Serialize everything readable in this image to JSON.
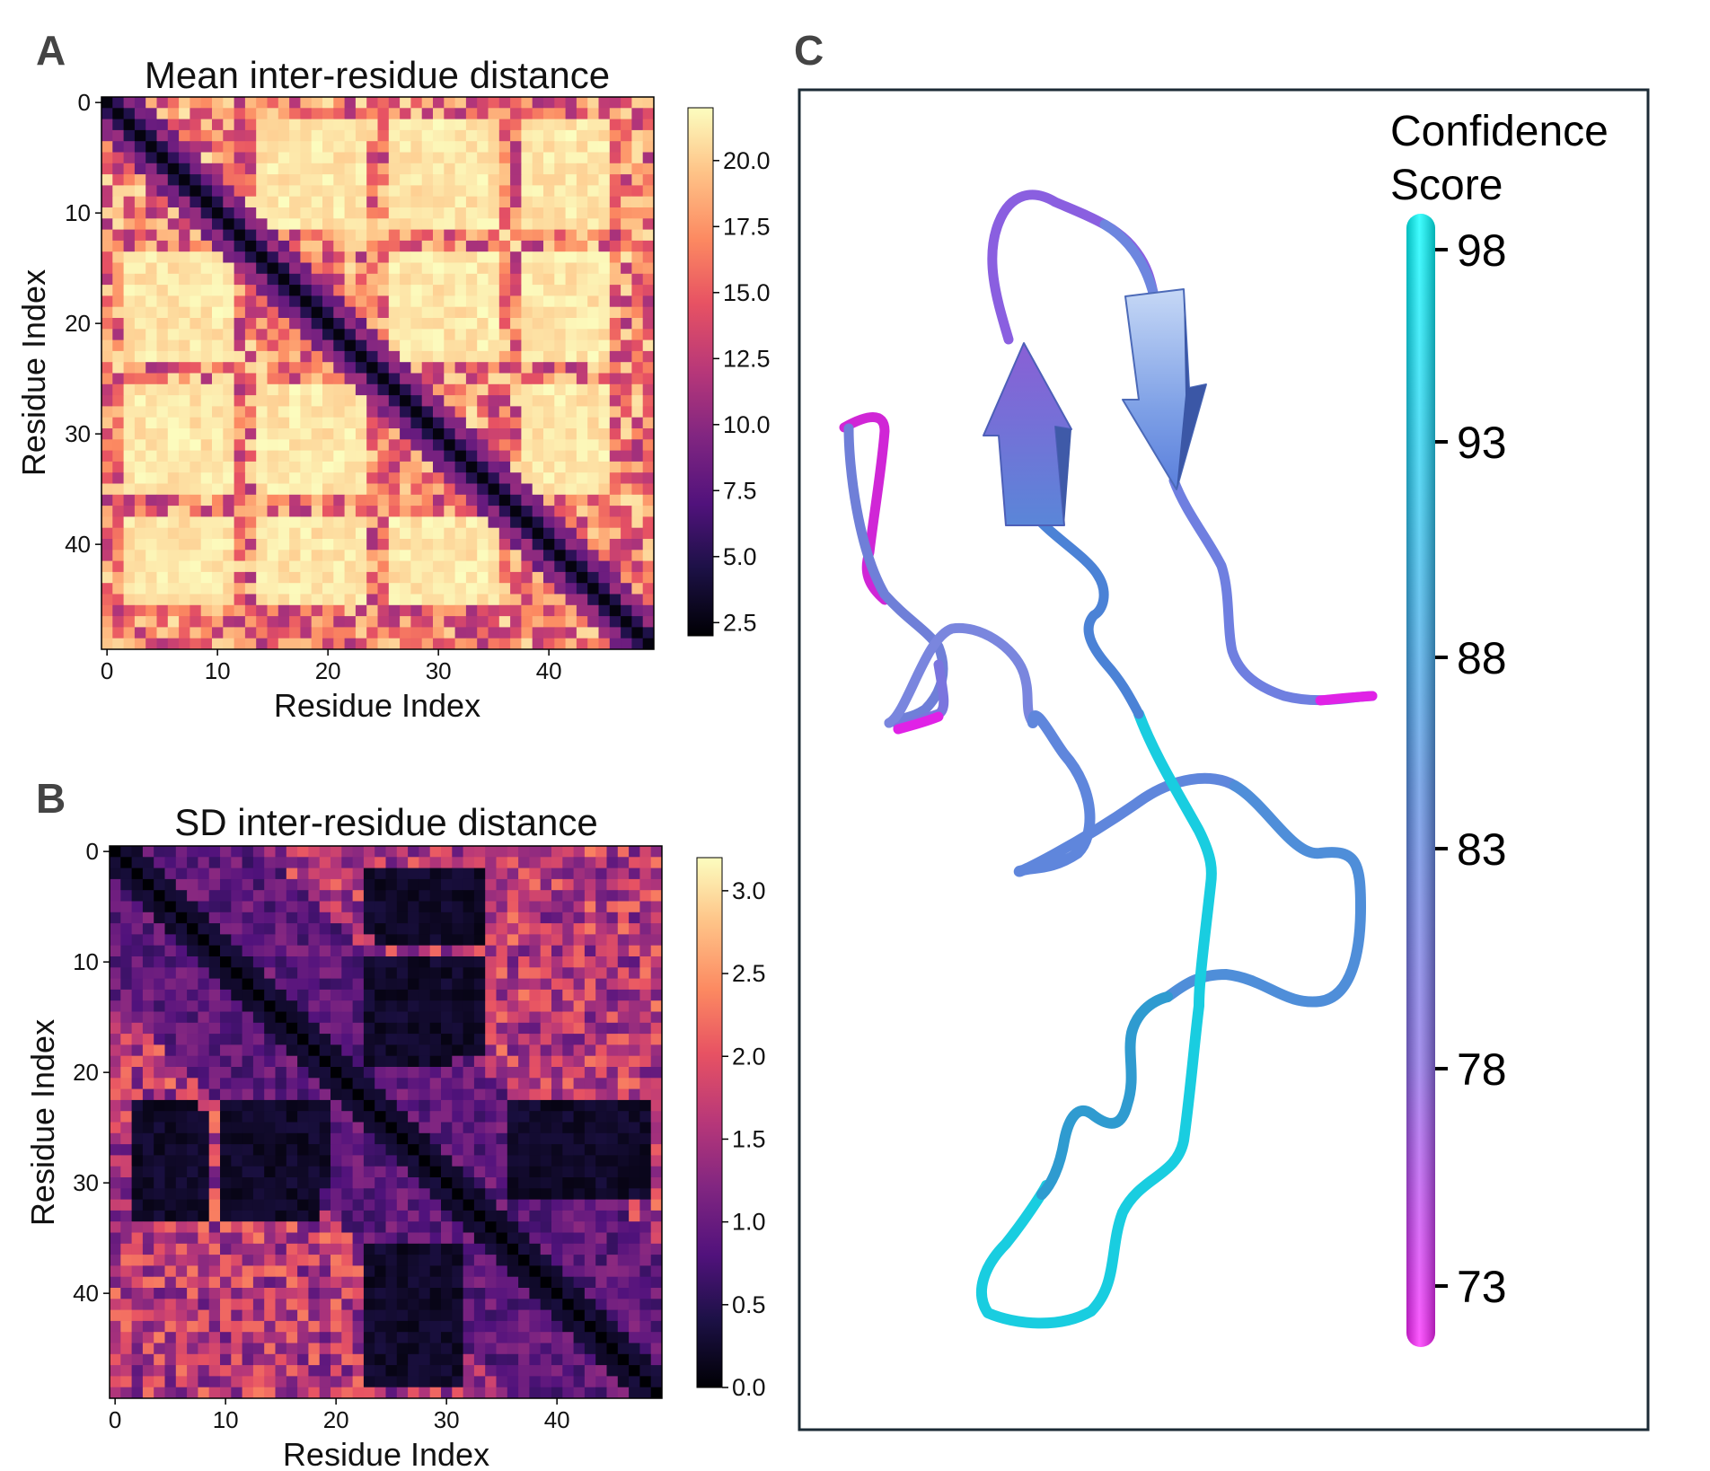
{
  "panels": {
    "a": {
      "letter": "A"
    },
    "b": {
      "letter": "B"
    },
    "c": {
      "letter": "C"
    }
  },
  "chart_data": [
    {
      "type": "heatmap",
      "title": "Mean inter-residue distance",
      "xlabel": "Residue Index",
      "ylabel": "Residue Index",
      "size": 50,
      "x_ticks": [
        "0",
        "10",
        "20",
        "30",
        "40"
      ],
      "y_ticks": [
        "0",
        "10",
        "20",
        "30",
        "40"
      ],
      "colorbar": {
        "min": 2.0,
        "max": 22.0,
        "ticks": [
          "2.5",
          "5.0",
          "7.5",
          "10.0",
          "12.5",
          "15.0",
          "17.5",
          "20.0"
        ],
        "colormap": "magma"
      },
      "blocks": [
        [
          2,
          12,
          14,
          24
        ],
        [
          2,
          12,
          26,
          36
        ],
        [
          14,
          24,
          26,
          36
        ],
        [
          14,
          24,
          38,
          46
        ],
        [
          26,
          36,
          38,
          46
        ],
        [
          2,
          12,
          38,
          46
        ]
      ]
    },
    {
      "type": "heatmap",
      "title": "SD inter-residue distance",
      "xlabel": "Residue Index",
      "ylabel": "Residue Index",
      "size": 50,
      "x_ticks": [
        "0",
        "10",
        "20",
        "30",
        "40"
      ],
      "y_ticks": [
        "0",
        "10",
        "20",
        "30",
        "40"
      ],
      "colorbar": {
        "min": 0.0,
        "max": 3.2,
        "ticks": [
          "0.0",
          "0.5",
          "1.0",
          "1.5",
          "2.0",
          "2.5",
          "3.0"
        ],
        "colormap": "magma"
      },
      "blocks": [
        [
          2,
          9,
          24,
          34
        ],
        [
          10,
          19,
          24,
          34
        ],
        [
          23,
          31,
          2,
          8
        ],
        [
          23,
          31,
          10,
          20
        ],
        [
          23,
          31,
          36,
          49
        ],
        [
          36,
          49,
          24,
          32
        ]
      ]
    },
    {
      "type": "structure",
      "colorbar_title": [
        "Confidence",
        "Score"
      ],
      "colorbar_ticks": [
        "98",
        "93",
        "88",
        "83",
        "78",
        "73"
      ],
      "colors": {
        "high": "#00ffff",
        "mid": "#6f8fe0",
        "low": "#ff22ff"
      }
    }
  ]
}
